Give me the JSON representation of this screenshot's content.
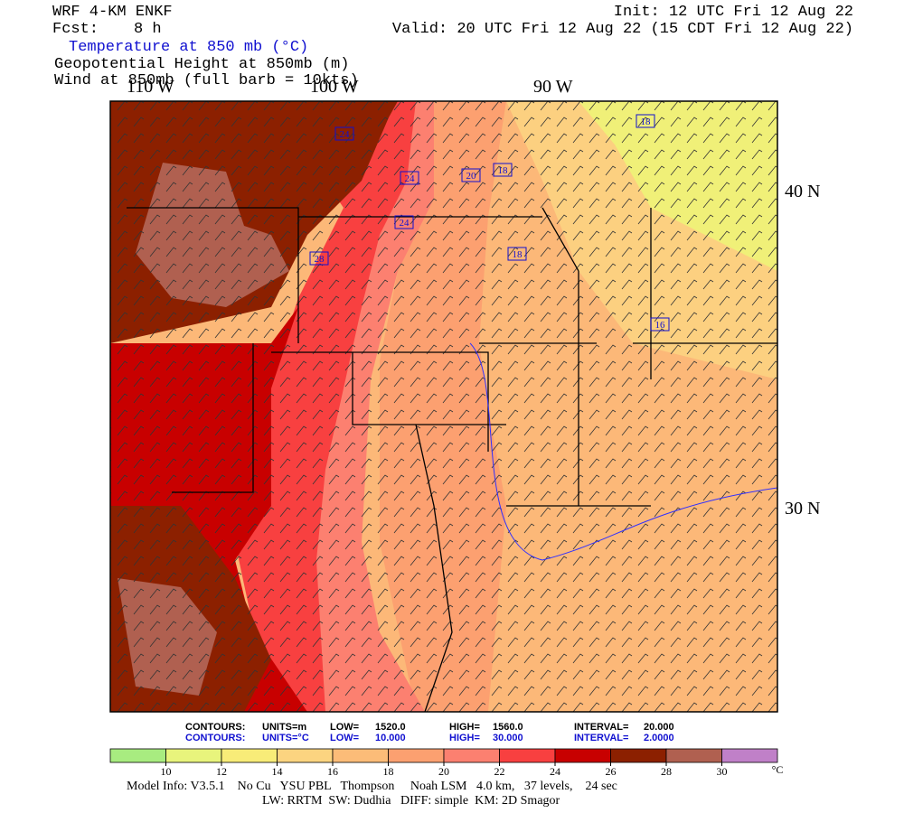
{
  "header": {
    "model": "WRF 4-KM ENKF",
    "fcst_label": "Fcst:",
    "fcst": "8 h",
    "init": "Init: 12 UTC Fri 12 Aug 22",
    "valid": "Valid: 20 UTC Fri 12 Aug 22 (15 CDT Fri 12 Aug 22)",
    "fields": [
      "Temperature at 850 mb (°C)",
      "Geopotential Height at 850mb (m)",
      "Wind at 850mb (full barb = 10kts)"
    ]
  },
  "map": {
    "longitudes": [
      "110 W",
      "100 W",
      "90 W"
    ],
    "latitudes": [
      "40 N",
      "30 N"
    ],
    "contour_labels": [
      "24",
      "24",
      "20",
      "18",
      "24",
      "28",
      "18",
      "18",
      "16"
    ]
  },
  "contours": [
    {
      "label": "CONTOURS:",
      "units": "UNITS=m",
      "low_label": "LOW=",
      "low": "1520.0",
      "high_label": "HIGH=",
      "high": "1560.0",
      "interval_label": "INTERVAL=",
      "interval": "20.000"
    },
    {
      "label": "CONTOURS:",
      "units": "UNITS=°C",
      "low_label": "LOW=",
      "low": "10.000",
      "high_label": "HIGH=",
      "high": "30.000",
      "interval_label": "INTERVAL=",
      "interval": "2.0000"
    }
  ],
  "colorbar": {
    "ticks": [
      10,
      12,
      14,
      16,
      18,
      20,
      22,
      24,
      26,
      28,
      30
    ],
    "unit": "°C",
    "colors": [
      "#a8ec80",
      "#e8f47c",
      "#f8ec78",
      "#fcd480",
      "#fcbc78",
      "#fca070",
      "#fc8070",
      "#f84040",
      "#c80000",
      "#8c2000",
      "#b06050",
      "#c080c8"
    ]
  },
  "footer": [
    "Model Info: V3.5.1    No Cu   YSU PBL   Thompson     Noah LSM   4.0 km,   37 levels,    24 sec",
    "LW: RRTM  SW: Dudhia   DIFF: simple  KM: 2D Smagor"
  ]
}
